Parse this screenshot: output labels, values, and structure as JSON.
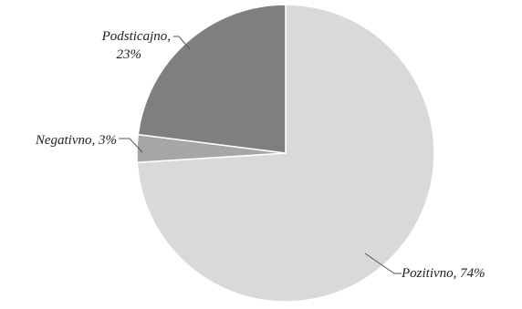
{
  "chart_data": {
    "type": "pie",
    "title": "",
    "slices": [
      {
        "label": "Pozitivno",
        "value": 74,
        "value_label": "74%",
        "color": "#d9d9d9"
      },
      {
        "label": "Negativno",
        "value": 3,
        "value_label": "3%",
        "color": "#a6a6a6"
      },
      {
        "label": "Podsticajno",
        "value": 23,
        "value_label": "23%",
        "color": "#7f7f7f"
      }
    ],
    "start_angle": "12 o'clock",
    "direction": "clockwise",
    "legend": "none",
    "labels": "outside with leader lines"
  }
}
